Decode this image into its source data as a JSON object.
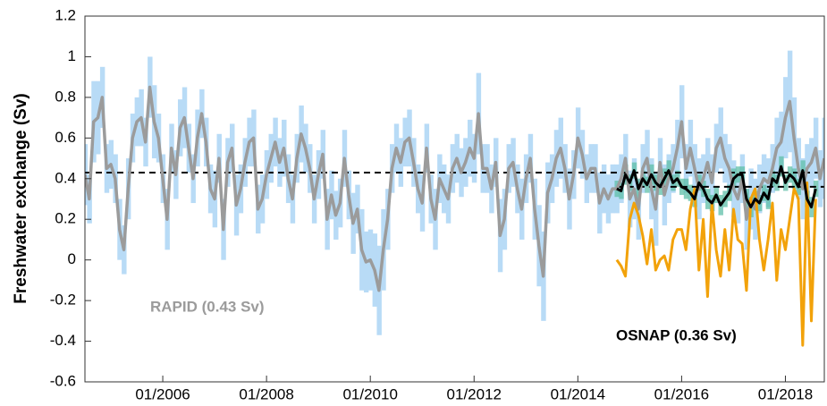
{
  "chart_data": {
    "type": "line",
    "ylabel": "Freshwater exchange (Sv)",
    "xlim": [
      "07/2004",
      "10/2018"
    ],
    "xticks": [
      "01/2006",
      "01/2008",
      "01/2010",
      "01/2012",
      "01/2014",
      "01/2016",
      "01/2018"
    ],
    "ylim": [
      -0.6,
      1.2
    ],
    "yticks": [
      1.2,
      1,
      0.8,
      0.6,
      0.4,
      0.2,
      0,
      -0.2,
      -0.4,
      -0.6
    ],
    "hlines": [
      0.43,
      0.36
    ],
    "annotations": [
      "RAPID (0.43 Sv)",
      "OSNAP (0.36 Sv)"
    ],
    "series": [
      {
        "color": "#9b9b9b",
        "band_color": "#b8dbf6",
        "x": [
          "07/2004",
          "08/2004",
          "09/2004",
          "10/2004",
          "11/2004",
          "12/2004",
          "01/2005",
          "02/2005",
          "03/2005",
          "04/2005",
          "05/2005",
          "06/2005",
          "07/2005",
          "08/2005",
          "09/2005",
          "10/2005",
          "11/2005",
          "12/2005",
          "01/2006",
          "02/2006",
          "03/2006",
          "04/2006",
          "05/2006",
          "06/2006",
          "07/2006",
          "08/2006",
          "09/2006",
          "10/2006",
          "11/2006",
          "12/2006",
          "01/2007",
          "02/2007",
          "03/2007",
          "04/2007",
          "05/2007",
          "06/2007",
          "07/2007",
          "08/2007",
          "09/2007",
          "10/2007",
          "11/2007",
          "12/2007",
          "01/2008",
          "02/2008",
          "03/2008",
          "04/2008",
          "05/2008",
          "06/2008",
          "07/2008",
          "08/2008",
          "09/2008",
          "10/2008",
          "11/2008",
          "12/2008",
          "01/2009",
          "02/2009",
          "03/2009",
          "04/2009",
          "05/2009",
          "06/2009",
          "07/2009",
          "08/2009",
          "09/2009",
          "10/2009",
          "11/2009",
          "12/2009",
          "01/2010",
          "02/2010",
          "03/2010",
          "04/2010",
          "05/2010",
          "06/2010",
          "07/2010",
          "08/2010",
          "09/2010",
          "10/2010",
          "11/2010",
          "12/2010",
          "01/2011",
          "02/2011",
          "03/2011",
          "04/2011",
          "05/2011",
          "06/2011",
          "07/2011",
          "08/2011",
          "09/2011",
          "10/2011",
          "11/2011",
          "12/2011",
          "01/2012",
          "02/2012",
          "03/2012",
          "04/2012",
          "05/2012",
          "06/2012",
          "07/2012",
          "08/2012",
          "09/2012",
          "10/2012",
          "11/2012",
          "12/2012",
          "01/2013",
          "02/2013",
          "03/2013",
          "04/2013",
          "05/2013",
          "06/2013",
          "07/2013",
          "08/2013",
          "09/2013",
          "10/2013",
          "11/2013",
          "12/2013",
          "01/2014",
          "02/2014",
          "03/2014",
          "04/2014",
          "05/2014",
          "06/2014",
          "07/2014",
          "08/2014",
          "09/2014",
          "10/2014",
          "11/2014",
          "12/2014",
          "01/2015",
          "02/2015",
          "03/2015",
          "04/2015",
          "05/2015",
          "06/2015",
          "07/2015",
          "08/2015",
          "09/2015",
          "10/2015",
          "11/2015",
          "12/2015",
          "01/2016",
          "02/2016",
          "03/2016",
          "04/2016",
          "05/2016",
          "06/2016",
          "07/2016",
          "08/2016",
          "09/2016",
          "10/2016",
          "11/2016",
          "12/2016",
          "01/2017",
          "02/2017",
          "03/2017",
          "04/2017",
          "05/2017",
          "06/2017",
          "07/2017",
          "08/2017",
          "09/2017",
          "10/2017",
          "11/2017",
          "12/2017",
          "01/2018",
          "02/2018",
          "03/2018",
          "04/2018",
          "05/2018",
          "06/2018",
          "07/2018",
          "08/2018",
          "09/2018",
          "10/2018"
        ],
        "values": [
          0.42,
          0.3,
          0.68,
          0.7,
          0.8,
          0.45,
          0.47,
          0.4,
          0.15,
          0.05,
          0.35,
          0.6,
          0.68,
          0.7,
          0.58,
          0.85,
          0.68,
          0.6,
          0.4,
          0.2,
          0.55,
          0.42,
          0.65,
          0.7,
          0.55,
          0.4,
          0.6,
          0.72,
          0.58,
          0.35,
          0.3,
          0.5,
          0.15,
          0.48,
          0.55,
          0.27,
          0.35,
          0.48,
          0.58,
          0.6,
          0.25,
          0.3,
          0.42,
          0.5,
          0.58,
          0.48,
          0.55,
          0.4,
          0.3,
          0.5,
          0.62,
          0.55,
          0.45,
          0.3,
          0.42,
          0.52,
          0.2,
          0.32,
          0.22,
          0.28,
          0.5,
          0.32,
          0.18,
          0.25,
          0.05,
          -0.01,
          0.0,
          -0.05,
          -0.15,
          0.05,
          0.2,
          0.45,
          0.55,
          0.48,
          0.58,
          0.6,
          0.48,
          0.35,
          0.28,
          0.55,
          0.3,
          0.2,
          0.4,
          0.35,
          0.3,
          0.45,
          0.5,
          0.43,
          0.48,
          0.55,
          0.5,
          0.72,
          0.45,
          0.45,
          0.35,
          0.48,
          0.12,
          0.2,
          0.45,
          0.48,
          0.35,
          0.25,
          0.4,
          0.5,
          0.25,
          0.07,
          -0.08,
          0.33,
          0.4,
          0.5,
          0.55,
          0.45,
          0.3,
          0.42,
          0.6,
          0.52,
          0.4,
          0.45,
          0.45,
          0.28,
          0.35,
          0.3,
          0.35,
          0.35,
          0.4,
          0.5,
          0.3,
          0.35,
          0.25,
          0.45,
          0.5,
          0.35,
          0.25,
          0.48,
          0.32,
          0.4,
          0.45,
          0.55,
          0.68,
          0.45,
          0.55,
          0.45,
          0.35,
          0.4,
          0.48,
          0.38,
          0.55,
          0.6,
          0.5,
          0.45,
          0.35,
          0.3,
          0.4,
          0.2,
          0.3,
          0.25,
          0.35,
          0.4,
          0.38,
          0.45,
          0.55,
          0.58,
          0.7,
          0.78,
          0.6,
          0.45,
          0.35,
          0.45,
          0.48,
          0.55,
          0.4,
          0.5
        ],
        "error": [
          0.15,
          0.12,
          0.2,
          0.18,
          0.15,
          0.12,
          0.12,
          0.12,
          0.15,
          0.12,
          0.15,
          0.12,
          0.12,
          0.14,
          0.12,
          0.15,
          0.18,
          0.12,
          0.12,
          0.15,
          0.12,
          0.12,
          0.14,
          0.15,
          0.12,
          0.12,
          0.14,
          0.12,
          0.12,
          0.12,
          0.14,
          0.12,
          0.15,
          0.12,
          0.12,
          0.15,
          0.12,
          0.12,
          0.12,
          0.14,
          0.12,
          0.12,
          0.12,
          0.12,
          0.12,
          0.12,
          0.14,
          0.12,
          0.12,
          0.12,
          0.14,
          0.12,
          0.12,
          0.12,
          0.12,
          0.12,
          0.15,
          0.12,
          0.12,
          0.12,
          0.14,
          0.12,
          0.15,
          0.12,
          0.2,
          0.15,
          0.15,
          0.18,
          0.22,
          0.2,
          0.15,
          0.12,
          0.12,
          0.12,
          0.12,
          0.14,
          0.12,
          0.12,
          0.14,
          0.12,
          0.12,
          0.15,
          0.12,
          0.12,
          0.12,
          0.12,
          0.12,
          0.12,
          0.12,
          0.14,
          0.12,
          0.2,
          0.12,
          0.12,
          0.12,
          0.12,
          0.18,
          0.15,
          0.12,
          0.12,
          0.12,
          0.15,
          0.12,
          0.12,
          0.15,
          0.2,
          0.22,
          0.15,
          0.12,
          0.14,
          0.15,
          0.12,
          0.15,
          0.12,
          0.15,
          0.12,
          0.12,
          0.12,
          0.12,
          0.15,
          0.12,
          0.12,
          0.12,
          0.12,
          0.12,
          0.12,
          0.14,
          0.15,
          0.15,
          0.12,
          0.14,
          0.15,
          0.18,
          0.12,
          0.15,
          0.12,
          0.12,
          0.14,
          0.18,
          0.12,
          0.14,
          0.12,
          0.15,
          0.12,
          0.12,
          0.14,
          0.12,
          0.15,
          0.12,
          0.12,
          0.14,
          0.12,
          0.12,
          0.15,
          0.15,
          0.15,
          0.12,
          0.12,
          0.12,
          0.12,
          0.15,
          0.15,
          0.2,
          0.25,
          0.2,
          0.15,
          0.15,
          0.12,
          0.12,
          0.15,
          0.14,
          0.2
        ]
      },
      {
        "name": "OSNAP (0.36 Sv)",
        "color": "#000000",
        "band_color": "#5fbfa8",
        "x": [
          "10/2014",
          "11/2014",
          "12/2014",
          "01/2015",
          "02/2015",
          "03/2015",
          "04/2015",
          "05/2015",
          "06/2015",
          "07/2015",
          "08/2015",
          "09/2015",
          "10/2015",
          "11/2015",
          "12/2015",
          "01/2016",
          "02/2016",
          "03/2016",
          "04/2016",
          "05/2016",
          "06/2016",
          "07/2016",
          "08/2016",
          "09/2016",
          "10/2016",
          "11/2016",
          "12/2016",
          "01/2017",
          "02/2017",
          "03/2017",
          "04/2017",
          "05/2017",
          "06/2017",
          "07/2017",
          "08/2017",
          "09/2017",
          "10/2017",
          "11/2017",
          "12/2017",
          "01/2018",
          "02/2018",
          "03/2018",
          "04/2018",
          "05/2018",
          "06/2018",
          "07/2018",
          "08/2018"
        ],
        "values": [
          0.35,
          0.34,
          0.42,
          0.38,
          0.44,
          0.35,
          0.4,
          0.37,
          0.42,
          0.38,
          0.36,
          0.4,
          0.44,
          0.38,
          0.4,
          0.36,
          0.35,
          0.33,
          0.3,
          0.38,
          0.35,
          0.3,
          0.28,
          0.32,
          0.27,
          0.3,
          0.33,
          0.4,
          0.42,
          0.42,
          0.3,
          0.26,
          0.3,
          0.28,
          0.33,
          0.3,
          0.4,
          0.38,
          0.46,
          0.38,
          0.42,
          0.4,
          0.36,
          0.44,
          0.3,
          0.26,
          0.35
        ],
        "error": [
          0.04,
          0.04,
          0.05,
          0.04,
          0.04,
          0.05,
          0.04,
          0.04,
          0.05,
          0.04,
          0.04,
          0.05,
          0.05,
          0.04,
          0.04,
          0.04,
          0.05,
          0.04,
          0.04,
          0.04,
          0.04,
          0.05,
          0.04,
          0.04,
          0.05,
          0.04,
          0.04,
          0.05,
          0.04,
          0.04,
          0.05,
          0.05,
          0.04,
          0.04,
          0.04,
          0.05,
          0.04,
          0.04,
          0.05,
          0.04,
          0.04,
          0.05,
          0.04,
          0.05,
          0.04,
          0.05,
          0.04
        ]
      },
      {
        "color": "#f2a20a",
        "x": [
          "10/2014",
          "11/2014",
          "12/2014",
          "01/2015",
          "02/2015",
          "03/2015",
          "04/2015",
          "05/2015",
          "06/2015",
          "07/2015",
          "08/2015",
          "09/2015",
          "10/2015",
          "11/2015",
          "12/2015",
          "01/2016",
          "02/2016",
          "03/2016",
          "04/2016",
          "05/2016",
          "06/2016",
          "07/2016",
          "08/2016",
          "09/2016",
          "10/2016",
          "11/2016",
          "12/2016",
          "01/2017",
          "02/2017",
          "03/2017",
          "04/2017",
          "05/2017",
          "06/2017",
          "07/2017",
          "08/2017",
          "09/2017",
          "10/2017",
          "11/2017",
          "12/2017",
          "01/2018",
          "02/2018",
          "03/2018",
          "04/2018",
          "05/2018",
          "06/2018",
          "07/2018",
          "08/2018"
        ],
        "values": [
          0.0,
          -0.03,
          -0.08,
          0.2,
          0.28,
          0.22,
          0.12,
          -0.02,
          0.15,
          -0.05,
          0.0,
          0.02,
          -0.05,
          0.1,
          0.15,
          0.15,
          0.05,
          0.25,
          0.35,
          -0.05,
          0.2,
          -0.18,
          0.28,
          0.05,
          -0.08,
          0.15,
          -0.05,
          0.25,
          0.1,
          0.08,
          -0.15,
          0.3,
          0.35,
          0.1,
          -0.05,
          0.1,
          0.28,
          -0.1,
          0.15,
          0.05,
          0.2,
          0.35,
          0.3,
          -0.42,
          0.38,
          -0.3,
          0.3
        ]
      }
    ]
  }
}
